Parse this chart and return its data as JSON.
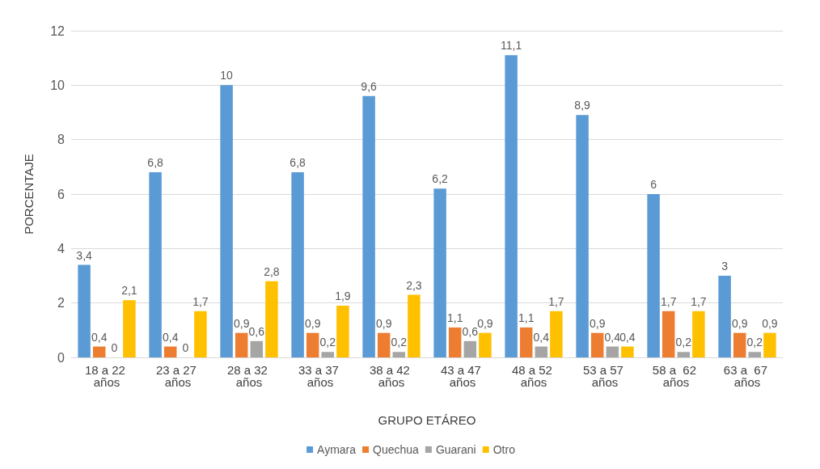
{
  "chart_data": {
    "type": "bar",
    "xlabel": "GRUPO ETÁREO",
    "ylabel": "PORCENTAJE",
    "categories": [
      "18 a 22 años",
      "23 a 27 años",
      "28 a 32 años",
      "33 a 37 años",
      "38 a 42 años",
      "43 a 47 años",
      "48 a 52 años",
      "53 a 57 años",
      "58 a  62 años",
      "63 a  67 años"
    ],
    "series": [
      {
        "name": "Aymara",
        "color": "#5b9bd5",
        "values": [
          3.4,
          6.8,
          10,
          6.8,
          9.6,
          6.2,
          11.1,
          8.9,
          6,
          3
        ],
        "value_labels": [
          "3,4",
          "6,8",
          "10",
          "6,8",
          "9,6",
          "6,2",
          "11,1",
          "8,9",
          "6",
          "3"
        ]
      },
      {
        "name": "Quechua",
        "color": "#ed7d31",
        "values": [
          0.4,
          0.4,
          0.9,
          0.9,
          0.9,
          1.1,
          1.1,
          0.9,
          1.7,
          0.9
        ],
        "value_labels": [
          "0,4",
          "0,4",
          "0,9",
          "0,9",
          "0,9",
          "1,1",
          "1,1",
          "0,9",
          "1,7",
          "0,9"
        ]
      },
      {
        "name": "Guarani",
        "color": "#a5a5a5",
        "values": [
          0,
          0,
          0.6,
          0.2,
          0.2,
          0.6,
          0.4,
          0.4,
          0.2,
          0.2
        ],
        "value_labels": [
          "0",
          "0",
          "0,6",
          "0,2",
          "0,2",
          "0,6",
          "0,4",
          "0,4",
          "0,2",
          "0,2"
        ]
      },
      {
        "name": "Otro",
        "color": "#ffc000",
        "values": [
          2.1,
          1.7,
          2.8,
          1.9,
          2.3,
          0.9,
          1.7,
          0.4,
          1.7,
          0.9
        ],
        "value_labels": [
          "2,1",
          "1,7",
          "2,8",
          "1,9",
          "2,3",
          "0,9",
          "1,7",
          "0,4",
          "1,7",
          "0,9"
        ]
      }
    ],
    "ylim": [
      0,
      12
    ],
    "yticks": [
      0,
      2,
      4,
      6,
      8,
      10,
      12
    ],
    "grid": "y",
    "legend": "bottom"
  }
}
